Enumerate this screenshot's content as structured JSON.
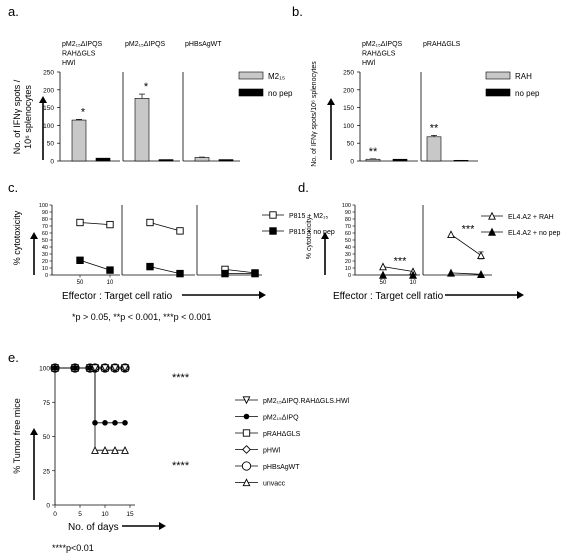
{
  "panel_letters": [
    "a.",
    "b.",
    "c.",
    "d.",
    "e."
  ],
  "footnotes": {
    "c": "*p > 0.05, **p < 0.001, ***p < 0.001",
    "e": "****p<0.01"
  },
  "chart_data": [
    {
      "id": "a",
      "type": "bar",
      "ylabel_line1": "No. of IFNγ spots /",
      "ylabel_line2": "10⁶ splenocytes",
      "ylim": [
        0,
        250
      ],
      "yticks": [
        0,
        50,
        100,
        150,
        200,
        250
      ],
      "groups": [
        "pM2₁₅ΔIPQS RAHΔGLS HWl",
        "pM2₁₅ΔIPQS",
        "pHBsAgWT"
      ],
      "group_lines": [
        [
          "pM2₁₅ΔIPQS",
          "RAHΔGLS",
          "HWl"
        ],
        [
          "pM2₁₅ΔIPQS"
        ],
        [
          "pHBsAgWT"
        ]
      ],
      "series": [
        {
          "name": "M2₁₅",
          "color": "#c8c8c8",
          "values": [
            115,
            176,
            10
          ],
          "errors": [
            2,
            12,
            1
          ]
        },
        {
          "name": "no pep",
          "color": "#000000",
          "values": [
            8,
            4,
            4
          ],
          "errors": [
            0,
            0,
            0
          ]
        }
      ],
      "annotations": [
        "*",
        "*",
        ""
      ]
    },
    {
      "id": "b",
      "type": "bar",
      "ylabel": "No. of IFNγ spots/10⁶ splenocytes",
      "ylim": [
        0,
        250
      ],
      "yticks": [
        0,
        50,
        100,
        150,
        200,
        250
      ],
      "groups": [
        "pM2₁₅ΔIPQS RAHΔGLS HWl",
        "pRAHΔGLS"
      ],
      "group_lines": [
        [
          "pM2₁₅ΔIPQS",
          "RAHΔGLS",
          "HWl"
        ],
        [
          "pRAHΔGLS"
        ]
      ],
      "series": [
        {
          "name": "RAH",
          "color": "#c8c8c8",
          "values": [
            5,
            68
          ],
          "errors": [
            1,
            4
          ]
        },
        {
          "name": "no pep",
          "color": "#000000",
          "values": [
            5,
            2
          ],
          "errors": [
            0,
            0
          ]
        }
      ],
      "annotations": [
        "**",
        "**"
      ]
    },
    {
      "id": "c",
      "type": "line",
      "ylabel": "% cytotoxicity",
      "xlabel": "Effector : Target cell ratio",
      "ylim": [
        0,
        100
      ],
      "yticks": [
        0,
        10,
        20,
        30,
        40,
        50,
        60,
        70,
        80,
        90,
        100
      ],
      "x_categories": [
        "50",
        "10"
      ],
      "xticks_shown_on_first_panel": true,
      "series": [
        {
          "name": "P815 + M2₁₅",
          "marker": "square-open",
          "panels": [
            [
              75,
              72
            ],
            [
              75,
              63
            ],
            [
              8,
              3
            ]
          ],
          "errors": [
            [
              0,
              4
            ],
            [
              0,
              0
            ],
            [
              0,
              0
            ]
          ]
        },
        {
          "name": "P815 + no pep",
          "marker": "square-filled",
          "panels": [
            [
              21,
              7
            ],
            [
              12,
              2
            ],
            [
              2,
              2
            ]
          ],
          "errors": [
            [
              3,
              0
            ],
            [
              2,
              0
            ],
            [
              0,
              0
            ]
          ]
        }
      ]
    },
    {
      "id": "d",
      "type": "line",
      "ylabel": "% cytotoxicity",
      "xlabel": "Effector : Target cell ratio",
      "ylim": [
        0,
        100
      ],
      "yticks": [
        0,
        10,
        20,
        30,
        40,
        50,
        60,
        70,
        80,
        90,
        100
      ],
      "x_categories": [
        "50",
        "10"
      ],
      "series": [
        {
          "name": "EL4.A2 + RAH",
          "marker": "triangle-open",
          "panels": [
            [
              12,
              5
            ],
            [
              58,
              28
            ]
          ],
          "errors": [
            [
              0,
              0
            ],
            [
              0,
              5
            ]
          ]
        },
        {
          "name": "EL4.A2 + no pep",
          "marker": "triangle-filled",
          "panels": [
            [
              0,
              0
            ],
            [
              3,
              1
            ]
          ],
          "errors": [
            [
              0,
              0
            ],
            [
              0,
              0
            ]
          ]
        }
      ],
      "annotations": [
        "***",
        "***"
      ]
    },
    {
      "id": "e",
      "type": "line",
      "ylabel": "% Tumor free mice",
      "xlabel": "No. of days",
      "xlim": [
        0,
        16
      ],
      "ylim": [
        0,
        100
      ],
      "xticks": [
        0,
        5,
        10,
        15
      ],
      "yticks": [
        0,
        25,
        50,
        75,
        100
      ],
      "x": [
        0,
        4,
        7,
        8,
        10,
        12,
        14
      ],
      "series": [
        {
          "name": "pM2₁₅ΔIPQ.RAHΔGLS.HWl",
          "marker": "triangle-down-open",
          "values": [
            100,
            100,
            100,
            100,
            100,
            100,
            100
          ]
        },
        {
          "name": "pM2₁₅ΔIPQ",
          "marker": "circle-filled",
          "values": [
            100,
            100,
            100,
            60,
            60,
            60,
            60
          ]
        },
        {
          "name": "pRAHΔGLS",
          "marker": "square-open",
          "values": [
            100,
            100,
            100,
            100,
            100,
            100,
            100
          ]
        },
        {
          "name": "pHWl",
          "marker": "diamond-open",
          "values": [
            100,
            100,
            100,
            100,
            100,
            100,
            100
          ]
        },
        {
          "name": "pHBsAgWT",
          "marker": "circle-open-large",
          "values": [
            100,
            100,
            100,
            100,
            100,
            100,
            100
          ]
        },
        {
          "name": "unvacc",
          "marker": "triangle-open",
          "values": [
            100,
            100,
            100,
            40,
            40,
            40,
            40
          ]
        }
      ],
      "annotations": [
        "****",
        "****"
      ]
    }
  ]
}
